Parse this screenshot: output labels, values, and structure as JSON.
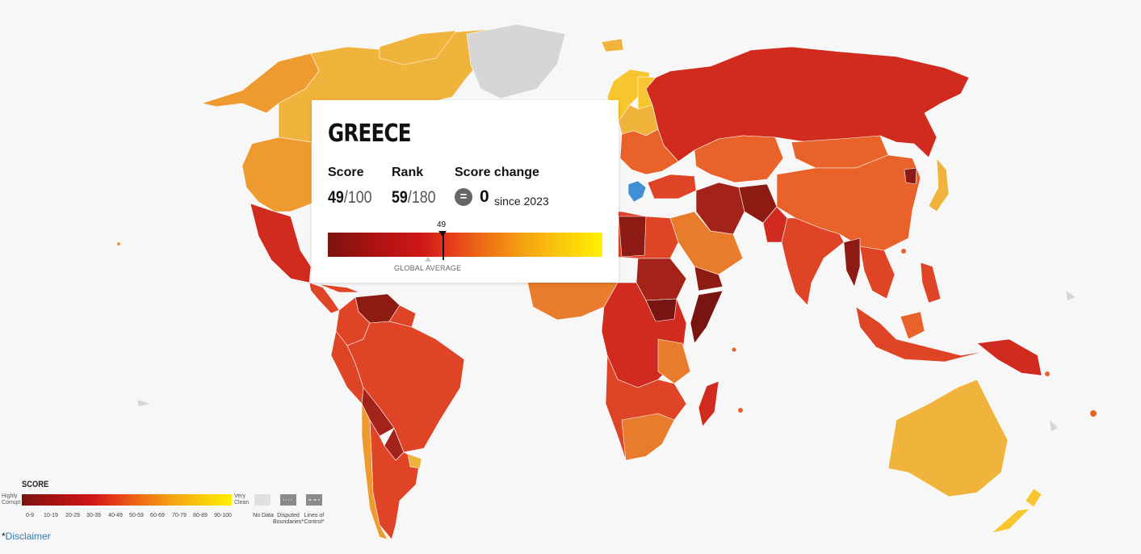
{
  "tooltip": {
    "country": "GREECE",
    "score_label": "Score",
    "score": "49",
    "score_max": "/100",
    "rank_label": "Rank",
    "rank": "59",
    "rank_max": "/180",
    "change_label": "Score change",
    "change_icon": "equals-icon",
    "change_value": "0",
    "change_since": "since 2023",
    "marker_value": "49",
    "global_average_label": "GLOBAL AVERAGE",
    "score_fraction": 0.49,
    "global_average_fraction": 0.43
  },
  "legend": {
    "title": "SCORE",
    "low_end": [
      "Highly",
      "Corrupt"
    ],
    "high_end": [
      "Very",
      "Clean"
    ],
    "ranges": [
      "0-9",
      "10-19",
      "20-29",
      "30-39",
      "40-49",
      "50-59",
      "60-69",
      "70-79",
      "80-89",
      "90-100"
    ],
    "no_data": "No Data",
    "disputed": [
      "Disputed",
      "Boundaries*"
    ],
    "lines_of_control": [
      "Lines of",
      "Control*"
    ]
  },
  "footer": {
    "asterisk": "*",
    "disclaimer": "Disclaimer"
  },
  "colors": {
    "background": "#f7f7f7",
    "no_data": "#d6d6d6",
    "greece_highlight": "#3f8fd2",
    "band_20_29": "#d12a1e",
    "band_30_39": "#e04427",
    "band_40_49": "#e8622a",
    "band_50_59": "#e87b2c",
    "band_60_69": "#ef9a2f",
    "band_70_79": "#f0b33c",
    "band_80_89": "#f7c52e",
    "band_10_19": "#a3231b"
  }
}
